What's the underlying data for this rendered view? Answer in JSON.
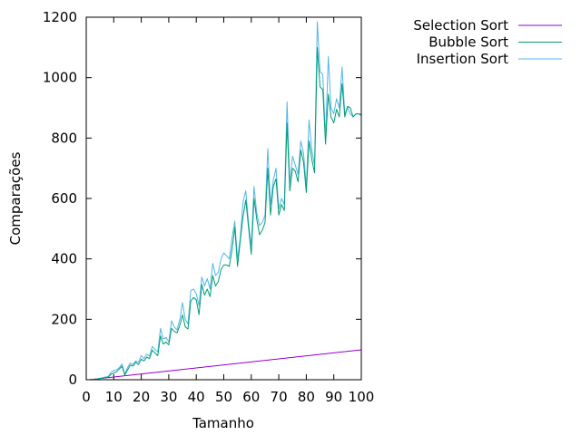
{
  "chart_data": {
    "type": "line",
    "xlabel": "Tamanho",
    "ylabel": "Comparações",
    "xlim": [
      0,
      100
    ],
    "ylim": [
      0,
      1200
    ],
    "xticks": [
      0,
      10,
      20,
      30,
      40,
      50,
      60,
      70,
      80,
      90,
      100
    ],
    "yticks": [
      0,
      200,
      400,
      600,
      800,
      1000,
      1200
    ],
    "grid": false,
    "legend_position": "top-right outside",
    "x": [
      1,
      2,
      3,
      4,
      5,
      6,
      7,
      8,
      9,
      10,
      11,
      12,
      13,
      14,
      15,
      16,
      17,
      18,
      19,
      20,
      21,
      22,
      23,
      24,
      25,
      26,
      27,
      28,
      29,
      30,
      31,
      32,
      33,
      34,
      35,
      36,
      37,
      38,
      39,
      40,
      41,
      42,
      43,
      44,
      45,
      46,
      47,
      48,
      49,
      50,
      51,
      52,
      53,
      54,
      55,
      56,
      57,
      58,
      59,
      60,
      61,
      62,
      63,
      64,
      65,
      66,
      67,
      68,
      69,
      70,
      71,
      72,
      73,
      74,
      75,
      76,
      77,
      78,
      79,
      80,
      81,
      82,
      83,
      84,
      85,
      86,
      87,
      88,
      89,
      90,
      91,
      92,
      93,
      94,
      95,
      96,
      97,
      98,
      99,
      100
    ],
    "series": [
      {
        "name": "Selection Sort",
        "color": "#9400d3",
        "values": [
          0,
          1,
          2,
          3,
          4,
          5,
          6,
          7,
          8,
          9,
          10,
          11,
          12,
          13,
          14,
          15,
          16,
          17,
          18,
          19,
          20,
          21,
          22,
          23,
          24,
          25,
          26,
          27,
          28,
          29,
          30,
          31,
          32,
          33,
          34,
          35,
          36,
          37,
          38,
          39,
          40,
          41,
          42,
          43,
          44,
          45,
          46,
          47,
          48,
          49,
          50,
          51,
          52,
          53,
          54,
          55,
          56,
          57,
          58,
          59,
          60,
          61,
          62,
          63,
          64,
          65,
          66,
          67,
          68,
          69,
          70,
          71,
          72,
          73,
          74,
          75,
          76,
          77,
          78,
          79,
          80,
          81,
          82,
          83,
          84,
          85,
          86,
          87,
          88,
          89,
          90,
          91,
          92,
          93,
          94,
          95,
          96,
          97,
          98,
          99
        ]
      },
      {
        "name": "Bubble Sort",
        "color": "#009e73",
        "values": [
          0,
          0,
          1,
          2,
          4,
          5,
          7,
          9,
          18,
          22,
          26,
          35,
          45,
          15,
          32,
          48,
          45,
          58,
          50,
          68,
          62,
          75,
          70,
          98,
          88,
          80,
          145,
          118,
          125,
          115,
          170,
          160,
          155,
          180,
          215,
          175,
          168,
          260,
          272,
          265,
          215,
          315,
          280,
          300,
          275,
          345,
          310,
          325,
          365,
          380,
          380,
          375,
          430,
          505,
          375,
          460,
          540,
          595,
          505,
          415,
          600,
          530,
          480,
          495,
          520,
          700,
          545,
          640,
          665,
          545,
          580,
          560,
          850,
          625,
          700,
          690,
          655,
          760,
          720,
          620,
          790,
          730,
          685,
          1100,
          970,
          960,
          780,
          945,
          870,
          850,
          895,
          870,
          980,
          870,
          905,
          900,
          870,
          880,
          880,
          875
        ]
      },
      {
        "name": "Insertion Sort",
        "color": "#56b4e9",
        "values": [
          0,
          1,
          2,
          3,
          5,
          7,
          9,
          10,
          25,
          30,
          33,
          40,
          52,
          18,
          40,
          55,
          50,
          62,
          58,
          80,
          70,
          85,
          78,
          110,
          100,
          92,
          170,
          135,
          140,
          125,
          195,
          175,
          165,
          200,
          255,
          200,
          185,
          295,
          300,
          285,
          245,
          340,
          310,
          335,
          300,
          385,
          345,
          355,
          400,
          420,
          410,
          400,
          470,
          525,
          400,
          470,
          590,
          625,
          520,
          440,
          640,
          550,
          510,
          520,
          545,
          765,
          580,
          660,
          700,
          565,
          600,
          580,
          920,
          650,
          740,
          710,
          680,
          790,
          750,
          640,
          860,
          760,
          710,
          1185,
          1020,
          1010,
          800,
          1070,
          900,
          880,
          930,
          900,
          1035,
          880,
          900,
          880,
          870,
          880,
          880,
          880
        ]
      }
    ]
  }
}
